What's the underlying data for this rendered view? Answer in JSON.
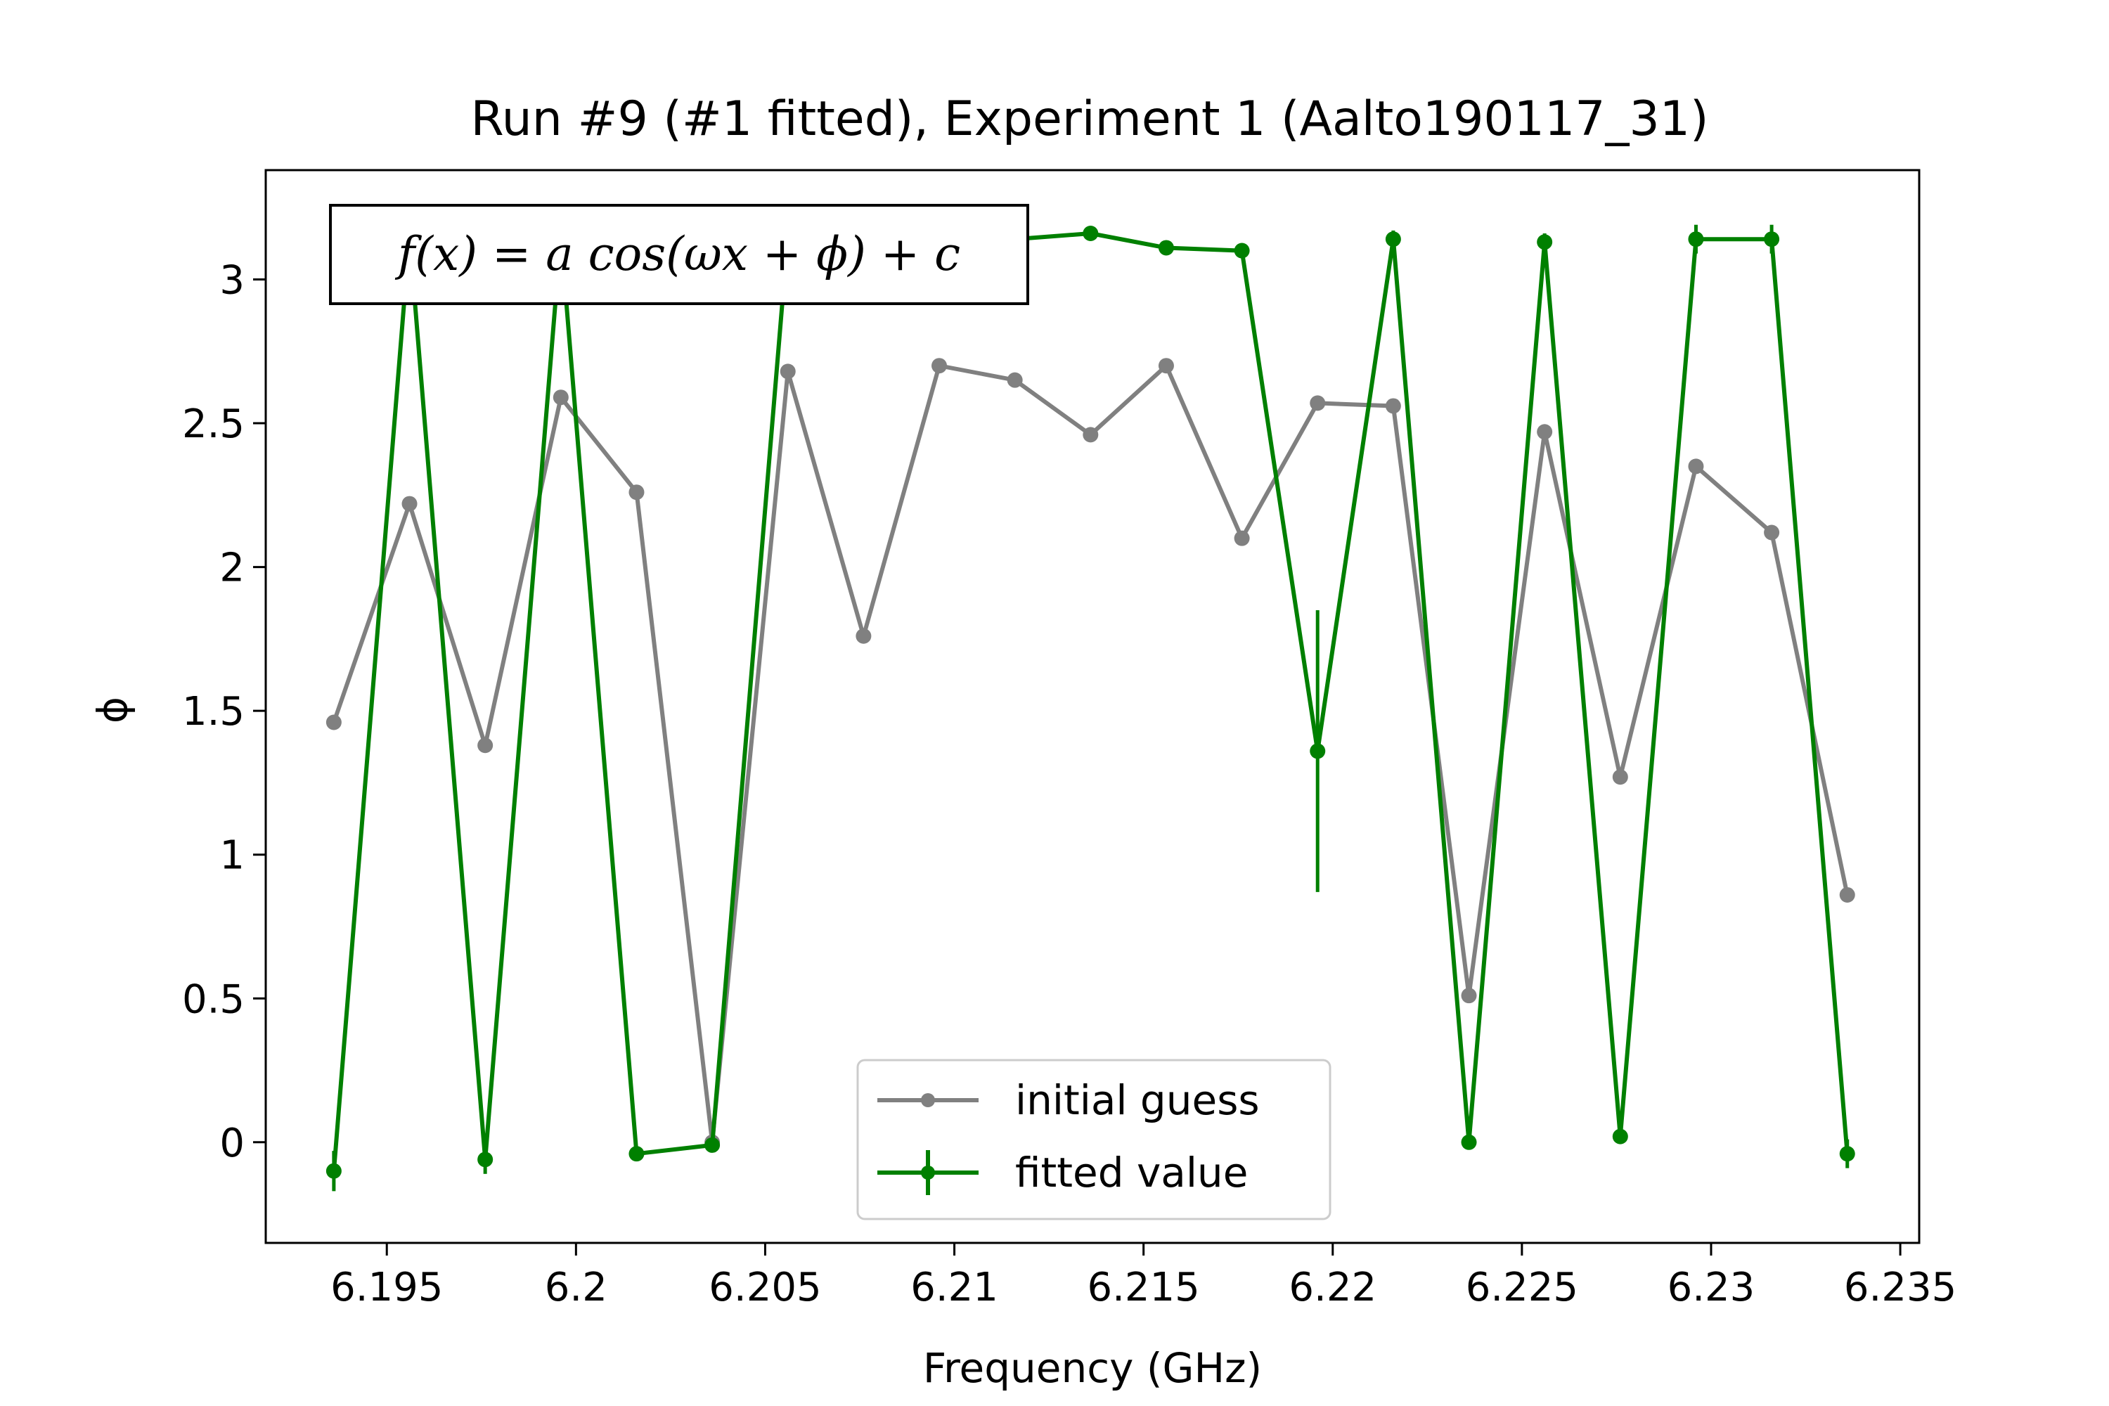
{
  "chart_data": {
    "type": "line",
    "title": "Run #9 (#1 fitted), Experiment 1 (Aalto190117_31)",
    "xlabel": "Frequency (GHz)",
    "ylabel": "ϕ",
    "annotation": "f(x) = a cos(ωx + ϕ) + c",
    "xlim": [
      6.1918,
      6.2355
    ],
    "ylim": [
      -0.35,
      3.38
    ],
    "xticks": [
      6.195,
      6.2,
      6.205,
      6.21,
      6.215,
      6.22,
      6.225,
      6.23,
      6.235
    ],
    "xtick_labels": [
      "6.195",
      "6.2",
      "6.205",
      "6.21",
      "6.215",
      "6.22",
      "6.225",
      "6.23",
      "6.235"
    ],
    "yticks": [
      0,
      0.5,
      1,
      1.5,
      2,
      2.5,
      3
    ],
    "ytick_labels": [
      "0",
      "0.5",
      "1",
      "1.5",
      "2",
      "2.5",
      "3"
    ],
    "grid": false,
    "legend_position": "bottom-center",
    "x": [
      6.1936,
      6.1956,
      6.1976,
      6.1996,
      6.2016,
      6.2036,
      6.2056,
      6.2076,
      6.2096,
      6.2116,
      6.2136,
      6.2156,
      6.2176,
      6.2196,
      6.2216,
      6.2236,
      6.2256,
      6.2276,
      6.2296,
      6.2316,
      6.2336
    ],
    "series": [
      {
        "name": "initial guess",
        "color": "#808080",
        "values": [
          1.46,
          2.22,
          1.38,
          2.59,
          2.26,
          0.0,
          2.68,
          1.76,
          2.7,
          2.65,
          2.46,
          2.7,
          2.1,
          2.57,
          2.56,
          0.51,
          2.47,
          1.27,
          2.35,
          2.12,
          0.86
        ]
      },
      {
        "name": "fitted value",
        "color": "#008000",
        "values": [
          -0.1,
          3.15,
          -0.06,
          3.15,
          -0.04,
          -0.01,
          3.15,
          3.15,
          3.15,
          3.14,
          3.16,
          3.11,
          3.1,
          1.36,
          3.14,
          0.0,
          3.13,
          0.02,
          3.14,
          3.14,
          -0.04
        ],
        "errors": [
          0.07,
          0.03,
          0.05,
          0.03,
          0.02,
          0.02,
          0.03,
          0.02,
          0.02,
          0.02,
          0.02,
          0.02,
          0.02,
          0.49,
          0.03,
          0.02,
          0.03,
          0.02,
          0.05,
          0.05,
          0.05
        ]
      }
    ]
  },
  "colors": {
    "initial_guess": "#808080",
    "fitted_value": "#008000",
    "axes": "#000000",
    "background": "#ffffff"
  }
}
